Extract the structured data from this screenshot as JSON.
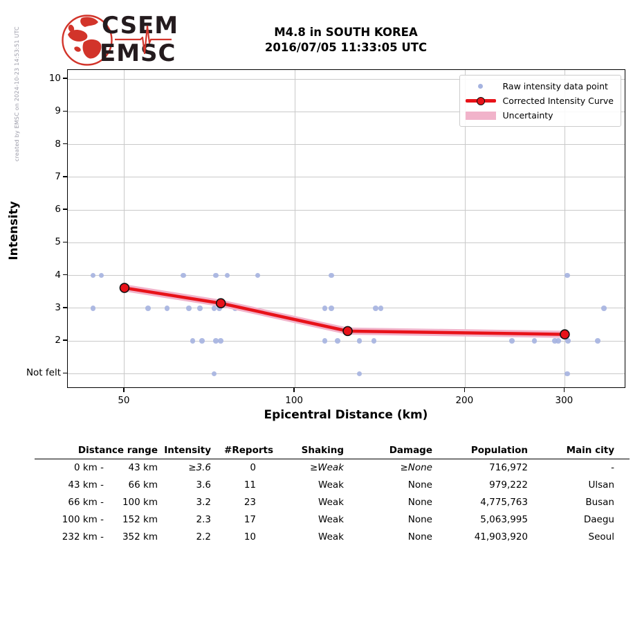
{
  "page": {
    "created_caption": "created by EMSC on 2024-10-23 14:53:51 UTC"
  },
  "logo": {
    "icon": "csem-emsc-globe-logo",
    "line1": "CSEM",
    "line2": "EMSC"
  },
  "title": {
    "line1": "M4.8 in SOUTH KOREA",
    "line2": "2016/07/05 11:33:05 UTC"
  },
  "chart_data": {
    "type": "scatter",
    "title": "M4.8 in SOUTH KOREA 2016/07/05 11:33:05 UTC",
    "xlabel": "Epicentral Distance (km)",
    "ylabel": "Intensity",
    "x_scale": "log",
    "xlim": [
      39.7,
      385
    ],
    "ylim": [
      0.54,
      10.28
    ],
    "x_ticks": [
      50,
      100,
      200,
      300
    ],
    "y_ticks": [
      {
        "value": 10,
        "label": "10"
      },
      {
        "value": 9,
        "label": "9"
      },
      {
        "value": 8,
        "label": "8"
      },
      {
        "value": 7,
        "label": "7"
      },
      {
        "value": 6,
        "label": "6"
      },
      {
        "value": 5,
        "label": "5"
      },
      {
        "value": 4,
        "label": "4"
      },
      {
        "value": 3,
        "label": "3"
      },
      {
        "value": 2,
        "label": "2"
      },
      {
        "value": 1,
        "label": "Not felt"
      }
    ],
    "grid": true,
    "legend": {
      "position": "upper right",
      "entries": [
        {
          "type": "dot",
          "label": "Raw intensity data point"
        },
        {
          "type": "line-marker",
          "label": "Corrected Intensity Curve"
        },
        {
          "type": "band",
          "label": "Uncertainty"
        }
      ]
    },
    "raw_points": [
      [
        44,
        4
      ],
      [
        45.5,
        4
      ],
      [
        63.5,
        4
      ],
      [
        72.5,
        4
      ],
      [
        76,
        4
      ],
      [
        86,
        4
      ],
      [
        116,
        4
      ],
      [
        303,
        4
      ],
      [
        44,
        3
      ],
      [
        55,
        3
      ],
      [
        59.5,
        3
      ],
      [
        65,
        3
      ],
      [
        68,
        3
      ],
      [
        72,
        3
      ],
      [
        73.5,
        3
      ],
      [
        78.5,
        3
      ],
      [
        113,
        3
      ],
      [
        116,
        3
      ],
      [
        139,
        3
      ],
      [
        142,
        3
      ],
      [
        352,
        3
      ],
      [
        66,
        2
      ],
      [
        68.5,
        2
      ],
      [
        72.5,
        2
      ],
      [
        74,
        2
      ],
      [
        113,
        2
      ],
      [
        119,
        2
      ],
      [
        130,
        2
      ],
      [
        138,
        2
      ],
      [
        242,
        2
      ],
      [
        265,
        2
      ],
      [
        288,
        2
      ],
      [
        292,
        2
      ],
      [
        304,
        2
      ],
      [
        343,
        2
      ],
      [
        72,
        1
      ],
      [
        130,
        1
      ],
      [
        303,
        1
      ]
    ],
    "corrected_curve": [
      [
        50,
        3.62
      ],
      [
        74,
        3.15
      ],
      [
        124,
        2.3
      ],
      [
        300,
        2.2
      ]
    ],
    "uncertainty_halfwidth": 0.11,
    "colors": {
      "raw_point": "#a5b3e0",
      "curve": "#e81219",
      "band": "#f1b3ca",
      "grid": "#c9c9c9",
      "legend_border": "#cccccc"
    }
  },
  "table": {
    "headers": {
      "range": "Distance range",
      "intensity": "Intensity",
      "reports": "#Reports",
      "shaking": "Shaking",
      "damage": "Damage",
      "population": "Population",
      "city": "Main city"
    },
    "rows": [
      {
        "range_from": "0 km -",
        "range_to": "43 km",
        "intensity": "≥3.6",
        "reports": "0",
        "shaking": "≥Weak",
        "damage": "≥None",
        "population": "716,972",
        "city": "-",
        "italic": true
      },
      {
        "range_from": "43 km -",
        "range_to": "66 km",
        "intensity": "3.6",
        "reports": "11",
        "shaking": "Weak",
        "damage": "None",
        "population": "979,222",
        "city": "Ulsan",
        "italic": false
      },
      {
        "range_from": "66 km -",
        "range_to": "100 km",
        "intensity": "3.2",
        "reports": "23",
        "shaking": "Weak",
        "damage": "None",
        "population": "4,775,763",
        "city": "Busan",
        "italic": false
      },
      {
        "range_from": "100 km -",
        "range_to": "152 km",
        "intensity": "2.3",
        "reports": "17",
        "shaking": "Weak",
        "damage": "None",
        "population": "5,063,995",
        "city": "Daegu",
        "italic": false
      },
      {
        "range_from": "232 km -",
        "range_to": "352 km",
        "intensity": "2.2",
        "reports": "10",
        "shaking": "Weak",
        "damage": "None",
        "population": "41,903,920",
        "city": "Seoul",
        "italic": false
      }
    ]
  }
}
